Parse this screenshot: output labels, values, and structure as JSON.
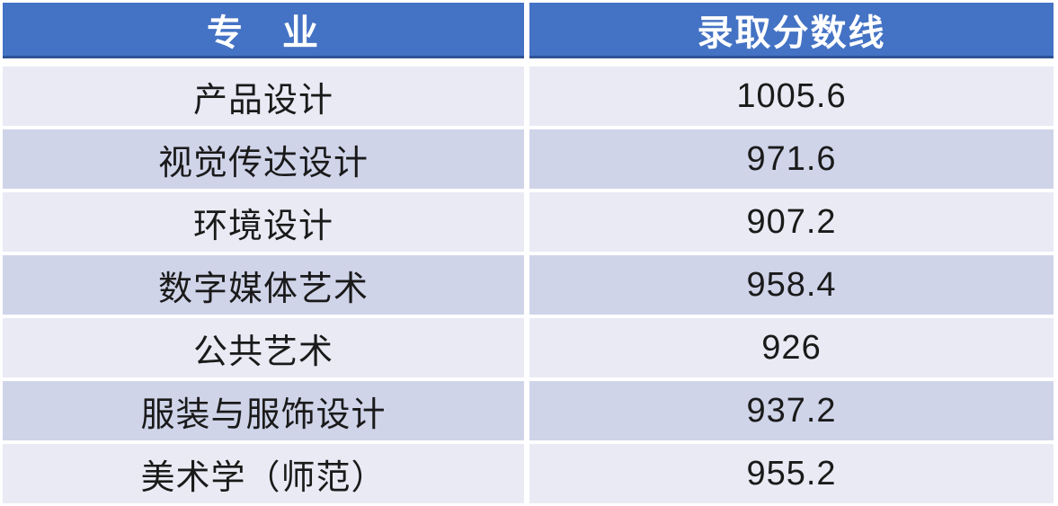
{
  "colors": {
    "header_bg": "#4472C4",
    "header_border_bottom": "#2E5395",
    "header_text": "#FFFFFF",
    "row_dark": "#CFD4E9",
    "row_light": "#E9EAF4",
    "cell_text": "#1A1A1A",
    "gutter": "#FFFFFF"
  },
  "table": {
    "headers": [
      {
        "label": "专　业"
      },
      {
        "label": "录取分数线"
      }
    ],
    "rows": [
      {
        "major": "产品设计",
        "score": "1005.6"
      },
      {
        "major": "视觉传达设计",
        "score": "971.6"
      },
      {
        "major": "环境设计",
        "score": "907.2"
      },
      {
        "major": "数字媒体艺术",
        "score": "958.4"
      },
      {
        "major": "公共艺术",
        "score": "926"
      },
      {
        "major": "服装与服饰设计",
        "score": "937.2"
      },
      {
        "major": "美术学（师范）",
        "score": "955.2"
      }
    ]
  },
  "chart_data": {
    "type": "table",
    "title": "",
    "columns": [
      "专业",
      "录取分数线"
    ],
    "rows": [
      [
        "产品设计",
        1005.6
      ],
      [
        "视觉传达设计",
        971.6
      ],
      [
        "环境设计",
        907.2
      ],
      [
        "数字媒体艺术",
        958.4
      ],
      [
        "公共艺术",
        926
      ],
      [
        "服装与服饰设计",
        937.2
      ],
      [
        "美术学（师范）",
        955.2
      ]
    ]
  }
}
